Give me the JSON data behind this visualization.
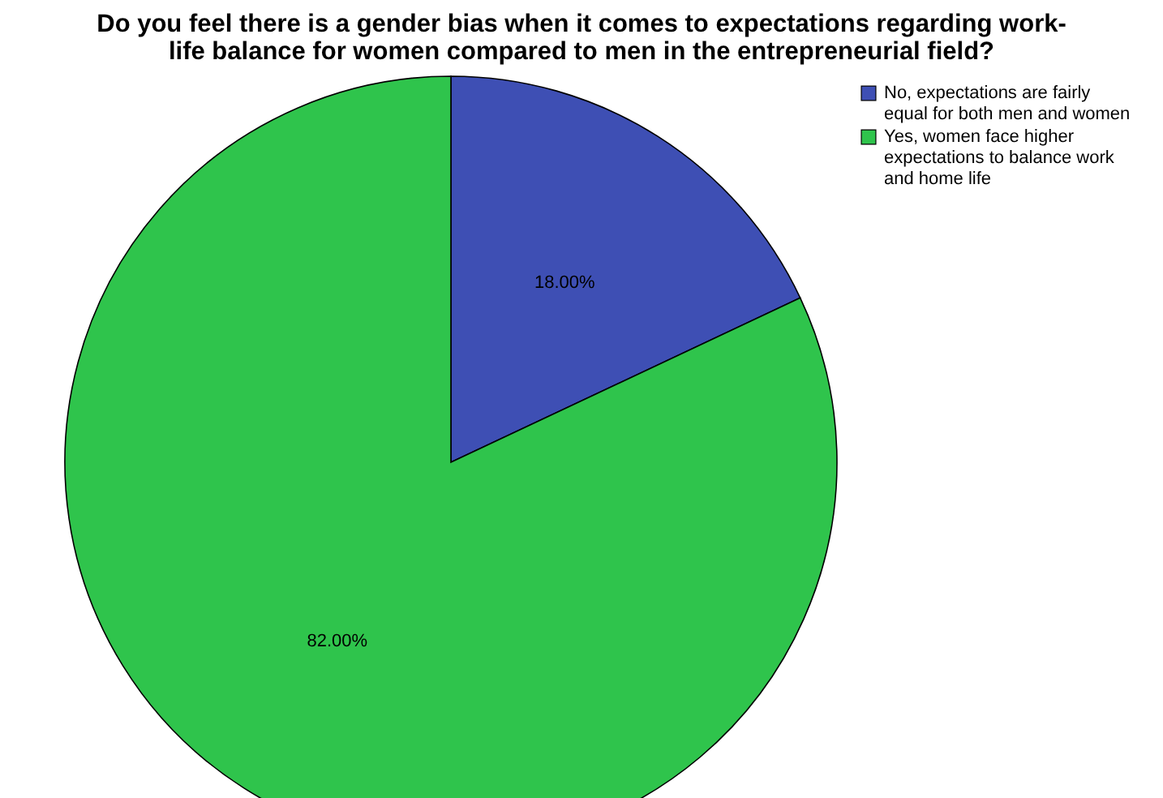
{
  "chart_data": {
    "type": "pie",
    "title": "Do you feel there is a gender bias when it comes to expectations regarding work-life balance for women compared to men in the entrepreneurial field?",
    "categories": [
      "No, expectations are fairly equal for both men and women",
      "Yes, women face higher expectations to balance work and home life"
    ],
    "values": [
      18,
      82
    ],
    "colors": [
      "#3e4fb4",
      "#2fc44c"
    ],
    "value_labels": [
      "18.00%",
      "82.00%"
    ],
    "legend": "top right"
  }
}
